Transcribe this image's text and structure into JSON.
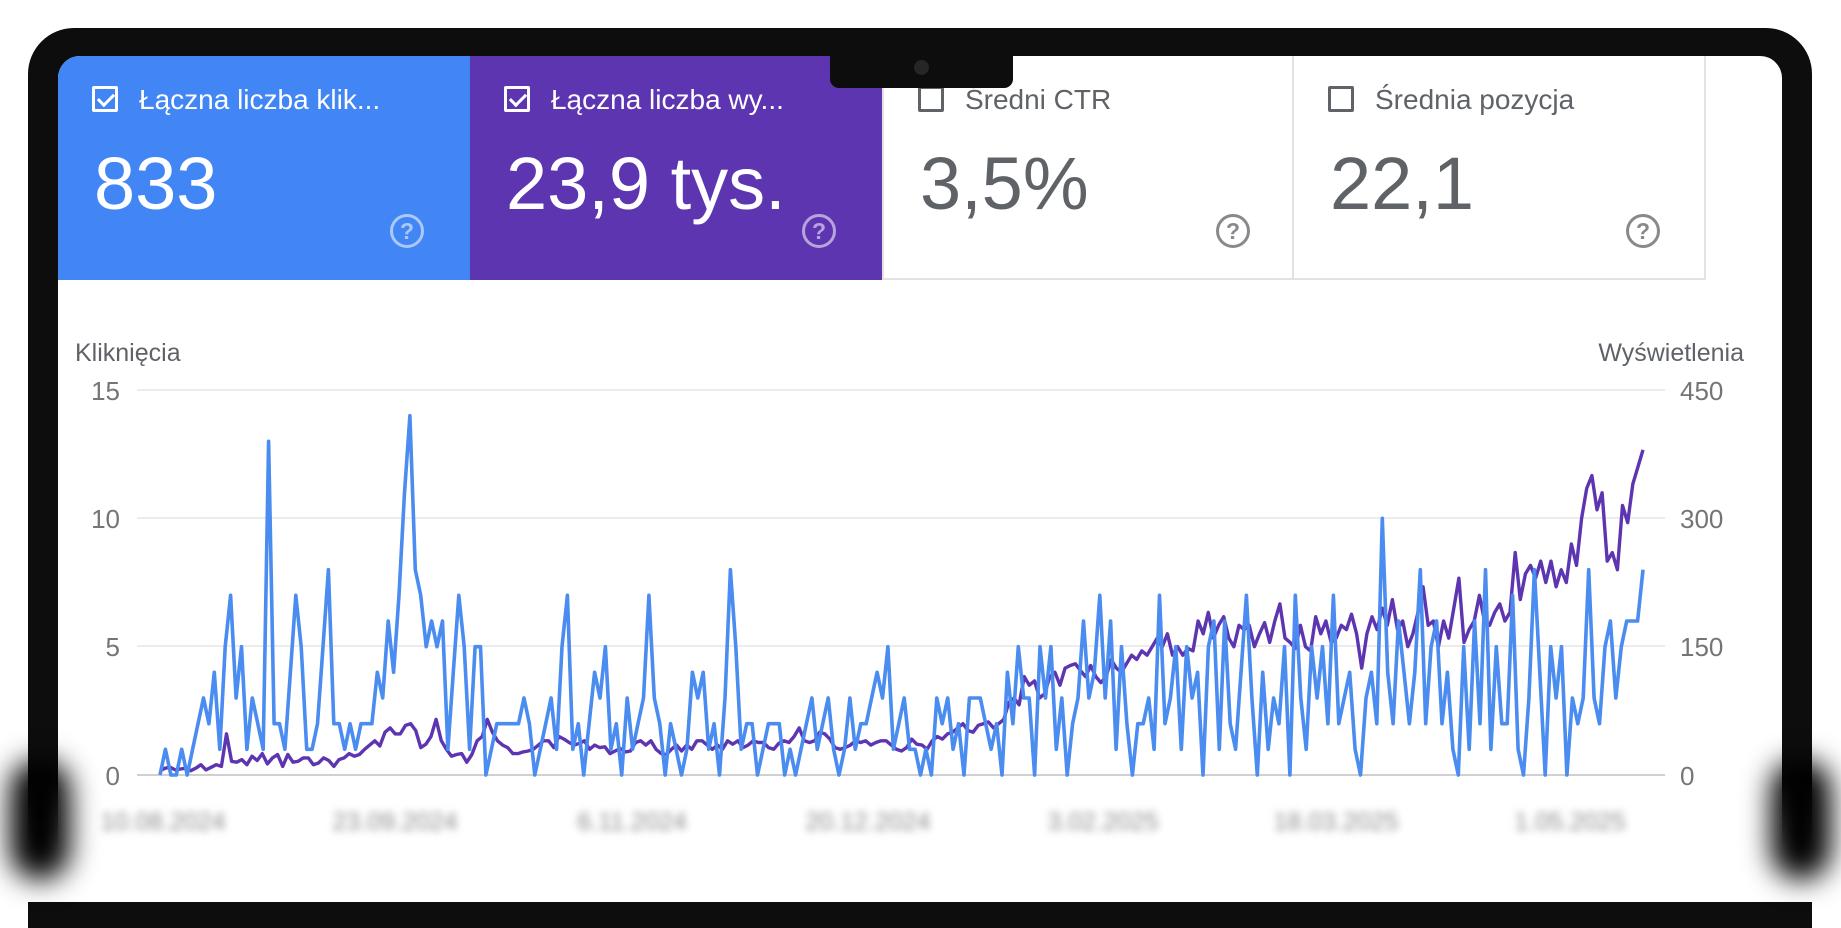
{
  "cards": [
    {
      "label": "Łączna liczba klik...",
      "value": "833",
      "checked": true
    },
    {
      "label": "Łączna liczba wy...",
      "value": "23,9 tys.",
      "checked": true
    },
    {
      "label": "Średni CTR",
      "value": "3,5%",
      "checked": false
    },
    {
      "label": "Średnia pozycja",
      "value": "22,1",
      "checked": false
    }
  ],
  "help_glyph": "?",
  "chart_data": {
    "type": "line",
    "y_left_label": "Kliknięcia",
    "y_right_label": "Wyświetlenia",
    "y_left_ticks": [
      "15",
      "10",
      "5",
      "0"
    ],
    "y_right_ticks": [
      "450",
      "300",
      "150",
      "0"
    ],
    "y_left_range": [
      0,
      15
    ],
    "y_right_range": [
      0,
      450
    ],
    "x_ticks": [
      "10.08.2024",
      "23.09.2024",
      "6.11.2024",
      "20.12.2024",
      "3.02.2025",
      "18.03.2025",
      "1.05.2025"
    ],
    "grid": true,
    "series": [
      {
        "name": "Łączna liczba kliknięć",
        "axis": "left",
        "color": "#4a8cef",
        "values": [
          0,
          1,
          0,
          0,
          1,
          0,
          1,
          2,
          3,
          2,
          4,
          1,
          5,
          7,
          3,
          5,
          1,
          3,
          2,
          1,
          13,
          2,
          2,
          1,
          4,
          7,
          5,
          1,
          1,
          2,
          5,
          8,
          2,
          2,
          1,
          2,
          1,
          2,
          2,
          2,
          4,
          3,
          6,
          4,
          7,
          11,
          14,
          8,
          7,
          5,
          6,
          5,
          6,
          1,
          4,
          7,
          5,
          1,
          5,
          5,
          0,
          1,
          2,
          2,
          2,
          2,
          2,
          3,
          2,
          0,
          1,
          2,
          3,
          1,
          5,
          7,
          1,
          2,
          0,
          2,
          4,
          3,
          5,
          1,
          2,
          0,
          3,
          1,
          2,
          3,
          7,
          3,
          2,
          0,
          2,
          1,
          0,
          1,
          4,
          3,
          4,
          1,
          2,
          0,
          3,
          8,
          5,
          1,
          2,
          2,
          0,
          1,
          2,
          2,
          2,
          0,
          1,
          0,
          1,
          2,
          3,
          1,
          2,
          3,
          1,
          0,
          1,
          3,
          1,
          2,
          2,
          3,
          4,
          3,
          5,
          1,
          2,
          3,
          1,
          1,
          0,
          1,
          0,
          3,
          2,
          3,
          1,
          2,
          0,
          3,
          3,
          3,
          2,
          1,
          2,
          0,
          4,
          2,
          5,
          3,
          3,
          0,
          5,
          3,
          5,
          1,
          3,
          0,
          2,
          3,
          6,
          3,
          4,
          7,
          3,
          6,
          1,
          5,
          2,
          0,
          2,
          2,
          3,
          1,
          7,
          2,
          3,
          5,
          1,
          5,
          3,
          4,
          0,
          5,
          6,
          1,
          6,
          2,
          1,
          4,
          7,
          3,
          0,
          4,
          1,
          3,
          2,
          5,
          0,
          7,
          3,
          1,
          5,
          3,
          5,
          2,
          7,
          2,
          3,
          4,
          1,
          0,
          3,
          4,
          2,
          10,
          4,
          2,
          6,
          4,
          2,
          4,
          8,
          2,
          5,
          6,
          2,
          4,
          1,
          0,
          5,
          1,
          6,
          2,
          8,
          1,
          5,
          2,
          2,
          7,
          1,
          0,
          3,
          8,
          4,
          0,
          5,
          3,
          5,
          0,
          3,
          2,
          3,
          8,
          3,
          2,
          5,
          6,
          3,
          5,
          6,
          6,
          6,
          8
        ]
      },
      {
        "name": "Łączna liczba wyświetleń",
        "axis": "right",
        "color": "#5e35b1",
        "values": [
          5,
          8,
          9,
          6,
          7,
          8,
          5,
          8,
          12,
          6,
          9,
          12,
          10,
          48,
          16,
          15,
          18,
          12,
          22,
          17,
          25,
          13,
          20,
          24,
          10,
          24,
          15,
          16,
          20,
          20,
          12,
          14,
          20,
          17,
          10,
          18,
          20,
          25,
          22,
          24,
          30,
          35,
          40,
          34,
          50,
          55,
          48,
          48,
          58,
          60,
          52,
          32,
          36,
          45,
          65,
          40,
          30,
          22,
          24,
          25,
          15,
          24,
          40,
          45,
          65,
          50,
          40,
          35,
          32,
          25,
          25,
          27,
          28,
          30,
          35,
          40,
          40,
          32,
          45,
          42,
          38,
          35,
          37,
          40,
          30,
          35,
          32,
          33,
          25,
          28,
          31,
          27,
          28,
          38,
          40,
          35,
          40,
          30,
          25,
          24,
          30,
          35,
          28,
          35,
          30,
          40,
          40,
          35,
          30,
          35,
          30,
          40,
          36,
          40,
          32,
          35,
          40,
          38,
          38,
          32,
          30,
          37,
          40,
          38,
          45,
          55,
          40,
          38,
          40,
          50,
          48,
          42,
          32,
          30,
          32,
          35,
          40,
          38,
          40,
          35,
          38,
          40,
          40,
          35,
          30,
          28,
          32,
          42,
          36,
          35,
          30,
          40,
          45,
          42,
          48,
          50,
          55,
          60,
          52,
          50,
          58,
          60,
          62,
          55,
          60,
          65,
          85,
          90,
          82,
          115,
          105,
          110,
          90,
          95,
          115,
          120,
          105,
          125,
          128,
          130,
          122,
          115,
          128,
          115,
          108,
          115,
          135,
          125,
          120,
          130,
          140,
          135,
          145,
          140,
          150,
          160,
          150,
          165,
          140,
          150,
          140,
          148,
          145,
          180,
          165,
          190,
          160,
          175,
          185,
          160,
          150,
          175,
          170,
          175,
          150,
          165,
          178,
          155,
          180,
          200,
          160,
          155,
          148,
          175,
          150,
          145,
          185,
          165,
          180,
          155,
          160,
          175,
          170,
          188,
          165,
          125,
          165,
          185,
          170,
          195,
          175,
          205,
          170,
          180,
          150,
          165,
          190,
          220,
          175,
          180,
          150,
          180,
          160,
          195,
          230,
          155,
          170,
          180,
          210,
          180,
          175,
          190,
          200,
          180,
          190,
          260,
          205,
          235,
          245,
          230,
          250,
          225,
          250,
          220,
          240,
          225,
          270,
          245,
          300,
          335,
          350,
          310,
          330,
          250,
          260,
          240,
          315,
          295,
          340,
          360,
          380
        ]
      }
    ]
  }
}
